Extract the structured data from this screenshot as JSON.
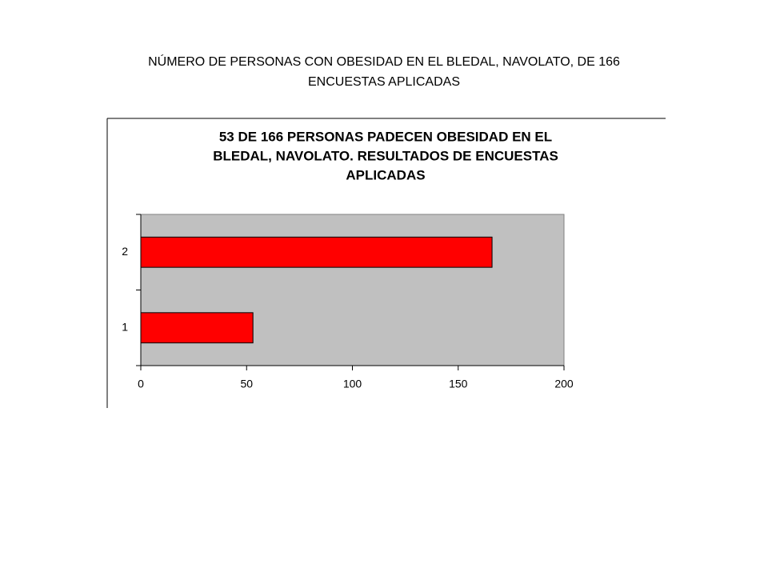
{
  "slide_title": [
    "NÚMERO DE PERSONAS CON OBESIDAD EN  EL BLEDAL, NAVOLATO,  DE 166",
    "ENCUESTAS  APLICADAS"
  ],
  "chart_data": {
    "type": "barh",
    "title": [
      "53 DE 166 PERSONAS PADECEN OBESIDAD EN EL",
      "BLEDAL, NAVOLATO. RESULTADOS DE ENCUESTAS",
      "APLICADAS"
    ],
    "categories": [
      "1",
      "2"
    ],
    "values": [
      53,
      166
    ],
    "color": "#ff0000",
    "xlim": [
      0,
      200
    ],
    "xticks": [
      0,
      50,
      100,
      150,
      200
    ],
    "grid": false,
    "plot_background": "#c0c0c0"
  }
}
